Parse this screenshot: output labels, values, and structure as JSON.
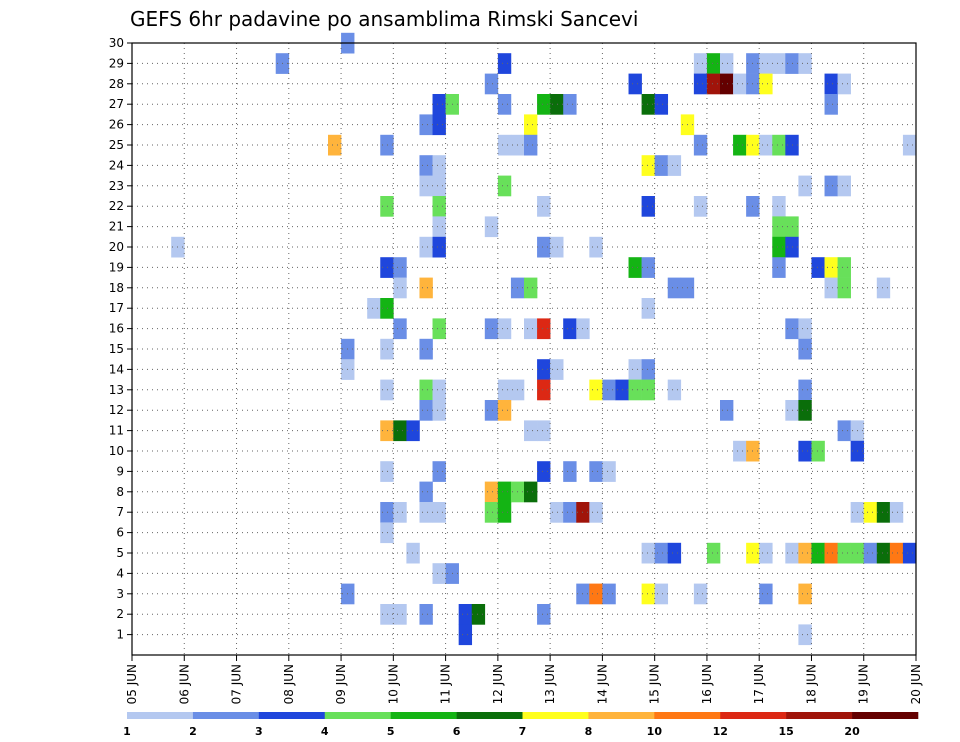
{
  "chart_data": {
    "type": "heatmap",
    "title": "GEFS 6hr padavine po ansamblima Rimski Sancevi",
    "xlabel": "",
    "ylabel": "",
    "x_ticks": [
      "05 JUN",
      "06 JUN",
      "07 JUN",
      "08 JUN",
      "09 JUN",
      "10 JUN",
      "11 JUN",
      "12 JUN",
      "13 JUN",
      "14 JUN",
      "15 JUN",
      "16 JUN",
      "17 JUN",
      "18 JUN",
      "19 JUN",
      "20 JUN"
    ],
    "y_ticks": [
      "1",
      "2",
      "3",
      "4",
      "5",
      "6",
      "7",
      "8",
      "9",
      "10",
      "11",
      "12",
      "13",
      "14",
      "15",
      "16",
      "17",
      "18",
      "19",
      "20",
      "21",
      "22",
      "23",
      "24",
      "25",
      "26",
      "27",
      "28",
      "29",
      "30"
    ],
    "xlim": [
      0,
      60
    ],
    "ylim": [
      0,
      30
    ],
    "x_unit": "6-hour steps from 05 JUN 00Z",
    "grid": true,
    "legend": {
      "position": "bottom",
      "levels": [
        "1",
        "2",
        "3",
        "4",
        "5",
        "6",
        "7",
        "8",
        "10",
        "12",
        "15",
        "20"
      ],
      "colors": [
        "#b4c8f0",
        "#6a8ee6",
        "#1f46dc",
        "#68e05a",
        "#14b414",
        "#0a6e0a",
        "#ffff1e",
        "#ffb43c",
        "#ff7814",
        "#dc2814",
        "#a0140a",
        "#640000"
      ]
    },
    "cells": [
      [
        16,
        30,
        1
      ],
      [
        11,
        29,
        1
      ],
      [
        28,
        29,
        2
      ],
      [
        43,
        29,
        0
      ],
      [
        44,
        29,
        4
      ],
      [
        45,
        29,
        0
      ],
      [
        47,
        29,
        1
      ],
      [
        48,
        29,
        0
      ],
      [
        49,
        29,
        0
      ],
      [
        50,
        29,
        1
      ],
      [
        51,
        29,
        0
      ],
      [
        27,
        28,
        1
      ],
      [
        38,
        28,
        2
      ],
      [
        43,
        28,
        2
      ],
      [
        44,
        28,
        10
      ],
      [
        45,
        28,
        11
      ],
      [
        46,
        28,
        0
      ],
      [
        47,
        28,
        1
      ],
      [
        48,
        28,
        6
      ],
      [
        53,
        28,
        2
      ],
      [
        54,
        28,
        0
      ],
      [
        23,
        27,
        2
      ],
      [
        24,
        27,
        3
      ],
      [
        28,
        27,
        1
      ],
      [
        31,
        27,
        4
      ],
      [
        32,
        27,
        5
      ],
      [
        33,
        27,
        1
      ],
      [
        39,
        27,
        5
      ],
      [
        40,
        27,
        2
      ],
      [
        53,
        27,
        1
      ],
      [
        22,
        26,
        1
      ],
      [
        23,
        26,
        2
      ],
      [
        30,
        26,
        6
      ],
      [
        42,
        26,
        6
      ],
      [
        15,
        25,
        7
      ],
      [
        19,
        25,
        1
      ],
      [
        28,
        25,
        0
      ],
      [
        29,
        25,
        0
      ],
      [
        30,
        25,
        1
      ],
      [
        43,
        25,
        1
      ],
      [
        46,
        25,
        4
      ],
      [
        47,
        25,
        6
      ],
      [
        48,
        25,
        0
      ],
      [
        49,
        25,
        3
      ],
      [
        50,
        25,
        2
      ],
      [
        59,
        25,
        0
      ],
      [
        22,
        24,
        1
      ],
      [
        23,
        24,
        0
      ],
      [
        39,
        24,
        6
      ],
      [
        40,
        24,
        1
      ],
      [
        41,
        24,
        0
      ],
      [
        22,
        23,
        0
      ],
      [
        23,
        23,
        0
      ],
      [
        28,
        23,
        3
      ],
      [
        51,
        23,
        0
      ],
      [
        53,
        23,
        1
      ],
      [
        54,
        23,
        0
      ],
      [
        19,
        22,
        3
      ],
      [
        23,
        22,
        3
      ],
      [
        31,
        22,
        0
      ],
      [
        39,
        22,
        2
      ],
      [
        43,
        22,
        0
      ],
      [
        47,
        22,
        1
      ],
      [
        49,
        22,
        0
      ],
      [
        23,
        21,
        0
      ],
      [
        27,
        21,
        0
      ],
      [
        49,
        21,
        3
      ],
      [
        50,
        21,
        3
      ],
      [
        3,
        20,
        0
      ],
      [
        22,
        20,
        0
      ],
      [
        23,
        20,
        2
      ],
      [
        31,
        20,
        1
      ],
      [
        32,
        20,
        0
      ],
      [
        35,
        20,
        0
      ],
      [
        49,
        20,
        4
      ],
      [
        50,
        20,
        2
      ],
      [
        19,
        19,
        2
      ],
      [
        20,
        19,
        1
      ],
      [
        38,
        19,
        4
      ],
      [
        39,
        19,
        1
      ],
      [
        49,
        19,
        1
      ],
      [
        52,
        19,
        2
      ],
      [
        53,
        19,
        6
      ],
      [
        54,
        19,
        3
      ],
      [
        20,
        18,
        0
      ],
      [
        22,
        18,
        7
      ],
      [
        29,
        18,
        1
      ],
      [
        30,
        18,
        3
      ],
      [
        41,
        18,
        1
      ],
      [
        42,
        18,
        1
      ],
      [
        53,
        18,
        0
      ],
      [
        54,
        18,
        3
      ],
      [
        57,
        18,
        0
      ],
      [
        18,
        17,
        0
      ],
      [
        19,
        17,
        4
      ],
      [
        39,
        17,
        0
      ],
      [
        20,
        16,
        1
      ],
      [
        23,
        16,
        3
      ],
      [
        27,
        16,
        1
      ],
      [
        28,
        16,
        0
      ],
      [
        30,
        16,
        0
      ],
      [
        31,
        16,
        9
      ],
      [
        33,
        16,
        2
      ],
      [
        34,
        16,
        0
      ],
      [
        50,
        16,
        1
      ],
      [
        51,
        16,
        0
      ],
      [
        16,
        15,
        1
      ],
      [
        19,
        15,
        0
      ],
      [
        22,
        15,
        1
      ],
      [
        51,
        15,
        1
      ],
      [
        16,
        14,
        0
      ],
      [
        31,
        14,
        2
      ],
      [
        32,
        14,
        0
      ],
      [
        38,
        14,
        0
      ],
      [
        39,
        14,
        1
      ],
      [
        19,
        13,
        0
      ],
      [
        22,
        13,
        3
      ],
      [
        23,
        13,
        0
      ],
      [
        28,
        13,
        0
      ],
      [
        29,
        13,
        0
      ],
      [
        31,
        13,
        9
      ],
      [
        35,
        13,
        6
      ],
      [
        36,
        13,
        1
      ],
      [
        37,
        13,
        2
      ],
      [
        38,
        13,
        3
      ],
      [
        39,
        13,
        3
      ],
      [
        41,
        13,
        0
      ],
      [
        51,
        13,
        1
      ],
      [
        22,
        12,
        1
      ],
      [
        23,
        12,
        0
      ],
      [
        27,
        12,
        1
      ],
      [
        28,
        12,
        7
      ],
      [
        45,
        12,
        1
      ],
      [
        50,
        12,
        0
      ],
      [
        51,
        12,
        5
      ],
      [
        19,
        11,
        7
      ],
      [
        20,
        11,
        5
      ],
      [
        21,
        11,
        2
      ],
      [
        30,
        11,
        0
      ],
      [
        31,
        11,
        0
      ],
      [
        54,
        11,
        1
      ],
      [
        55,
        11,
        0
      ],
      [
        46,
        10,
        0
      ],
      [
        47,
        10,
        7
      ],
      [
        51,
        10,
        2
      ],
      [
        52,
        10,
        3
      ],
      [
        55,
        10,
        2
      ],
      [
        19,
        9,
        0
      ],
      [
        23,
        9,
        1
      ],
      [
        31,
        9,
        2
      ],
      [
        33,
        9,
        1
      ],
      [
        35,
        9,
        1
      ],
      [
        36,
        9,
        0
      ],
      [
        22,
        8,
        1
      ],
      [
        27,
        8,
        7
      ],
      [
        28,
        8,
        4
      ],
      [
        29,
        8,
        3
      ],
      [
        30,
        8,
        5
      ],
      [
        19,
        7,
        1
      ],
      [
        20,
        7,
        0
      ],
      [
        22,
        7,
        0
      ],
      [
        23,
        7,
        0
      ],
      [
        27,
        7,
        3
      ],
      [
        28,
        7,
        4
      ],
      [
        32,
        7,
        0
      ],
      [
        33,
        7,
        1
      ],
      [
        34,
        7,
        10
      ],
      [
        35,
        7,
        0
      ],
      [
        55,
        7,
        0
      ],
      [
        56,
        7,
        6
      ],
      [
        57,
        7,
        5
      ],
      [
        58,
        7,
        0
      ],
      [
        19,
        6,
        0
      ],
      [
        21,
        5,
        0
      ],
      [
        39,
        5,
        0
      ],
      [
        40,
        5,
        1
      ],
      [
        41,
        5,
        2
      ],
      [
        44,
        5,
        3
      ],
      [
        47,
        5,
        6
      ],
      [
        48,
        5,
        0
      ],
      [
        50,
        5,
        0
      ],
      [
        51,
        5,
        7
      ],
      [
        52,
        5,
        4
      ],
      [
        53,
        5,
        8
      ],
      [
        54,
        5,
        3
      ],
      [
        55,
        5,
        3
      ],
      [
        56,
        5,
        1
      ],
      [
        57,
        5,
        5
      ],
      [
        58,
        5,
        8
      ],
      [
        59,
        5,
        2
      ],
      [
        23,
        4,
        0
      ],
      [
        24,
        4,
        1
      ],
      [
        16,
        3,
        1
      ],
      [
        34,
        3,
        1
      ],
      [
        35,
        3,
        8
      ],
      [
        36,
        3,
        1
      ],
      [
        39,
        3,
        6
      ],
      [
        40,
        3,
        0
      ],
      [
        43,
        3,
        0
      ],
      [
        48,
        3,
        1
      ],
      [
        51,
        3,
        7
      ],
      [
        19,
        2,
        0
      ],
      [
        20,
        2,
        0
      ],
      [
        22,
        2,
        1
      ],
      [
        25,
        2,
        2
      ],
      [
        26,
        2,
        5
      ],
      [
        31,
        2,
        1
      ],
      [
        25,
        1,
        2
      ],
      [
        51,
        1,
        0
      ]
    ]
  }
}
